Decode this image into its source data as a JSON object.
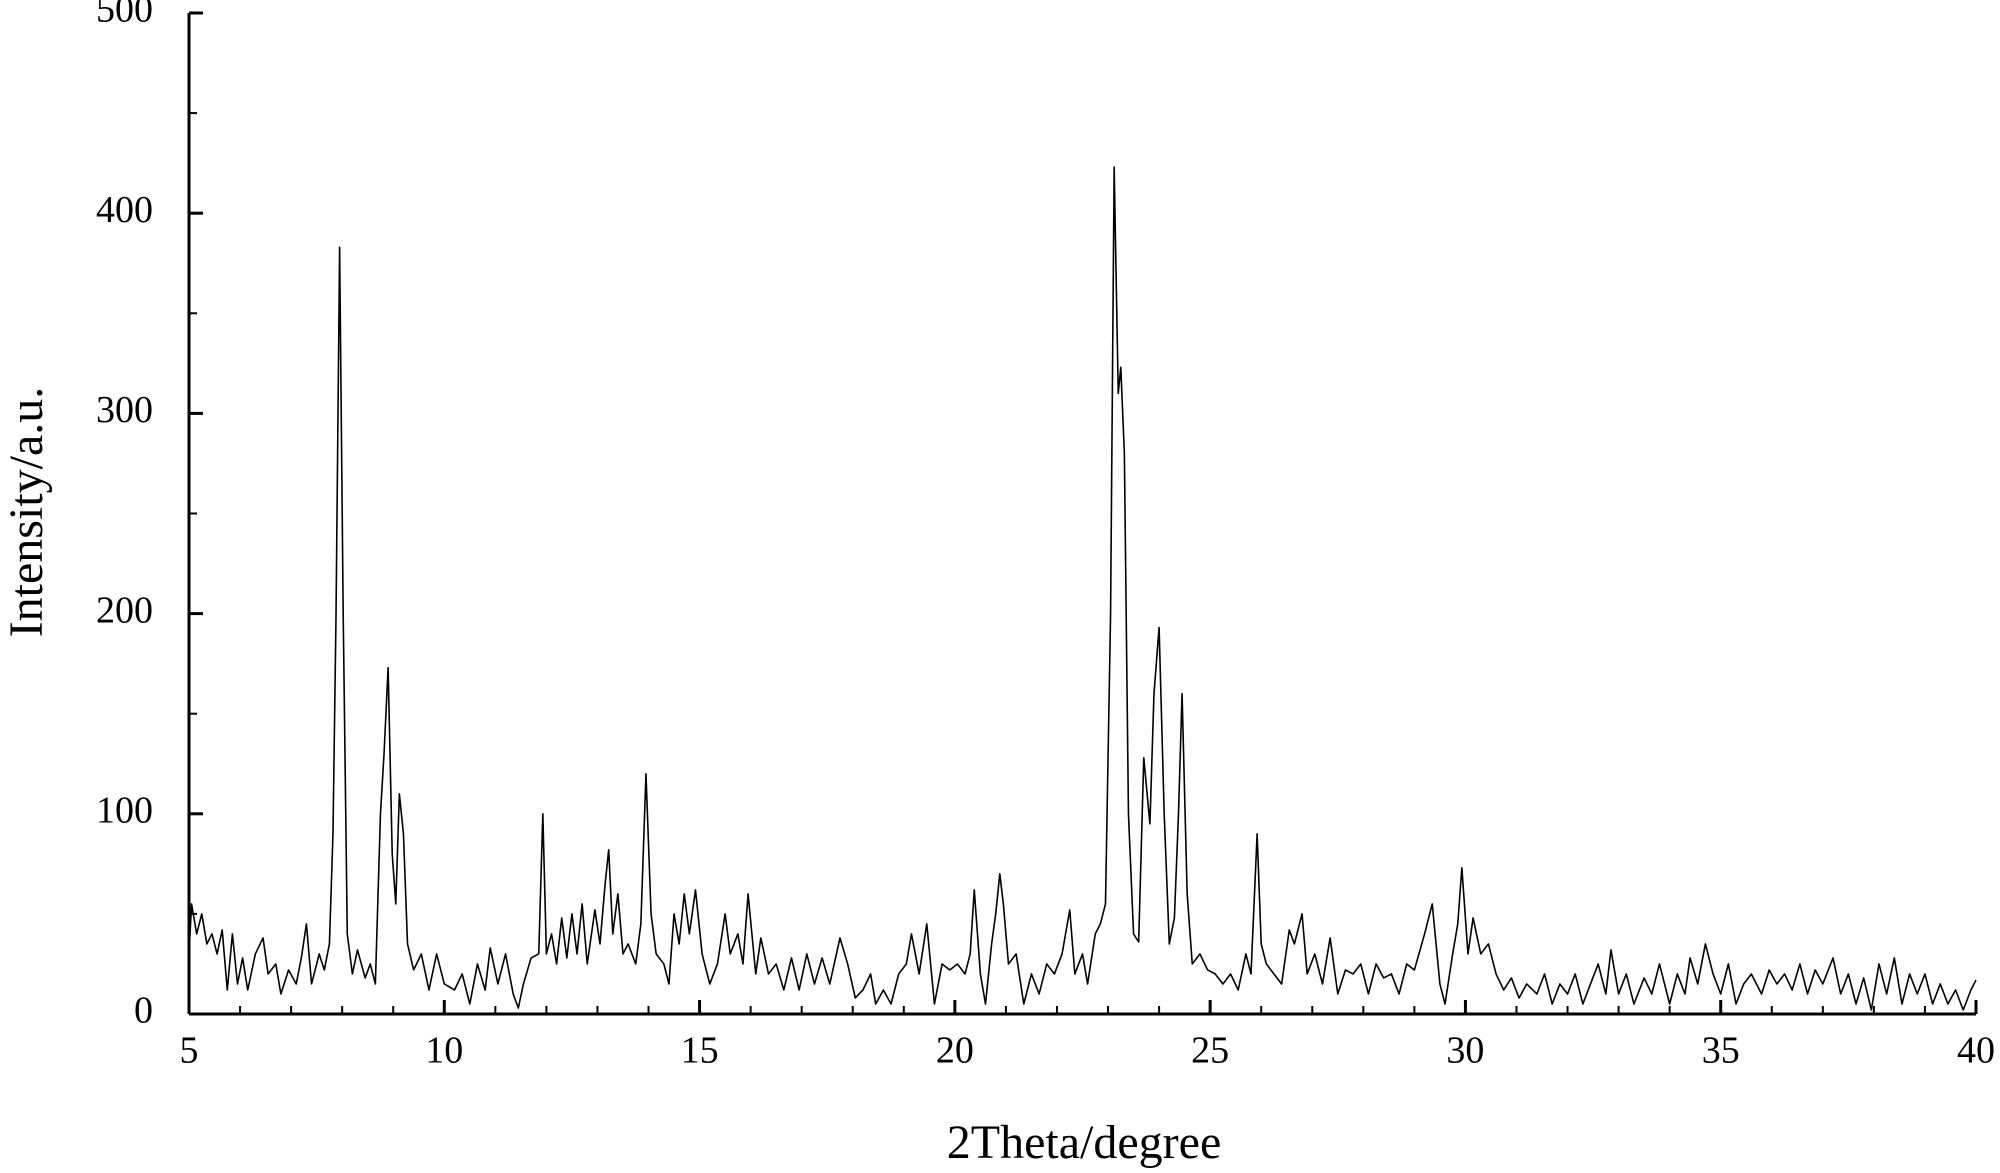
{
  "chart_data": {
    "type": "line",
    "x_label": "2Theta/degree",
    "y_label": "Intensity/a.u.",
    "color": "#000000",
    "xlim": [
      5,
      40
    ],
    "xticks": [
      5,
      10,
      15,
      20,
      25,
      30,
      35,
      40
    ],
    "ylim": [
      0,
      500
    ],
    "yticks": [
      0,
      100,
      200,
      300,
      400,
      500
    ],
    "x": [
      5.0,
      5.05,
      5.15,
      5.25,
      5.35,
      5.45,
      5.55,
      5.65,
      5.75,
      5.85,
      5.95,
      6.05,
      6.15,
      6.3,
      6.45,
      6.55,
      6.7,
      6.8,
      6.95,
      7.1,
      7.2,
      7.3,
      7.4,
      7.55,
      7.65,
      7.75,
      7.82,
      7.88,
      7.95,
      8.02,
      8.1,
      8.2,
      8.3,
      8.45,
      8.55,
      8.65,
      8.75,
      8.82,
      8.9,
      8.98,
      9.05,
      9.12,
      9.2,
      9.28,
      9.4,
      9.55,
      9.7,
      9.85,
      10.0,
      10.2,
      10.35,
      10.5,
      10.65,
      10.8,
      10.9,
      11.05,
      11.2,
      11.35,
      11.45,
      11.55,
      11.7,
      11.85,
      11.93,
      12.0,
      12.1,
      12.2,
      12.3,
      12.4,
      12.5,
      12.6,
      12.7,
      12.8,
      12.95,
      13.05,
      13.15,
      13.22,
      13.3,
      13.4,
      13.5,
      13.6,
      13.75,
      13.85,
      13.95,
      14.05,
      14.15,
      14.3,
      14.4,
      14.5,
      14.6,
      14.7,
      14.8,
      14.92,
      15.05,
      15.2,
      15.35,
      15.5,
      15.6,
      15.75,
      15.85,
      15.95,
      16.1,
      16.2,
      16.35,
      16.5,
      16.65,
      16.8,
      16.95,
      17.1,
      17.25,
      17.4,
      17.55,
      17.75,
      17.9,
      18.05,
      18.2,
      18.35,
      18.45,
      18.6,
      18.75,
      18.9,
      19.05,
      19.15,
      19.3,
      19.45,
      19.6,
      19.75,
      19.9,
      20.05,
      20.2,
      20.3,
      20.38,
      20.5,
      20.6,
      20.72,
      20.8,
      20.88,
      20.95,
      21.05,
      21.2,
      21.35,
      21.5,
      21.65,
      21.8,
      21.95,
      22.1,
      22.25,
      22.35,
      22.5,
      22.6,
      22.75,
      22.85,
      22.95,
      23.05,
      23.12,
      23.2,
      23.25,
      23.32,
      23.4,
      23.5,
      23.6,
      23.7,
      23.82,
      23.9,
      24.0,
      24.1,
      24.2,
      24.3,
      24.38,
      24.45,
      24.55,
      24.65,
      24.8,
      24.95,
      25.1,
      25.25,
      25.4,
      25.55,
      25.7,
      25.8,
      25.92,
      26.0,
      26.1,
      26.25,
      26.4,
      26.55,
      26.65,
      26.8,
      26.9,
      27.05,
      27.2,
      27.35,
      27.5,
      27.65,
      27.8,
      27.95,
      28.1,
      28.25,
      28.4,
      28.55,
      28.7,
      28.85,
      29.0,
      29.2,
      29.35,
      29.5,
      29.6,
      29.75,
      29.85,
      29.93,
      30.05,
      30.15,
      30.3,
      30.45,
      30.6,
      30.75,
      30.9,
      31.05,
      31.2,
      31.4,
      31.55,
      31.7,
      31.85,
      32.0,
      32.15,
      32.3,
      32.45,
      32.6,
      32.75,
      32.85,
      33.0,
      33.15,
      33.3,
      33.5,
      33.65,
      33.8,
      34.0,
      34.15,
      34.3,
      34.4,
      34.55,
      34.7,
      34.85,
      35.0,
      35.15,
      35.3,
      35.45,
      35.6,
      35.8,
      35.95,
      36.1,
      36.25,
      36.4,
      36.55,
      36.7,
      36.85,
      37.0,
      37.2,
      37.35,
      37.5,
      37.65,
      37.8,
      37.95,
      38.1,
      38.25,
      38.4,
      38.55,
      38.7,
      38.85,
      39.0,
      39.15,
      39.3,
      39.45,
      39.6,
      39.75,
      39.9,
      40.0
    ],
    "values": [
      30,
      55,
      40,
      50,
      35,
      40,
      30,
      42,
      12,
      40,
      15,
      28,
      12,
      30,
      38,
      20,
      25,
      10,
      22,
      15,
      28,
      45,
      15,
      30,
      22,
      35,
      90,
      200,
      383,
      200,
      40,
      20,
      32,
      18,
      25,
      15,
      100,
      130,
      173,
      80,
      55,
      110,
      90,
      35,
      22,
      30,
      12,
      30,
      15,
      12,
      20,
      5,
      25,
      12,
      33,
      15,
      30,
      10,
      3,
      15,
      28,
      30,
      100,
      30,
      40,
      25,
      48,
      28,
      50,
      30,
      55,
      25,
      52,
      35,
      65,
      82,
      40,
      60,
      30,
      35,
      25,
      45,
      120,
      50,
      30,
      25,
      15,
      50,
      35,
      60,
      40,
      62,
      30,
      15,
      25,
      50,
      30,
      40,
      25,
      60,
      20,
      38,
      20,
      25,
      12,
      28,
      12,
      30,
      15,
      28,
      15,
      38,
      25,
      8,
      12,
      20,
      5,
      12,
      5,
      20,
      25,
      40,
      20,
      45,
      5,
      25,
      22,
      25,
      20,
      30,
      62,
      20,
      5,
      35,
      50,
      70,
      55,
      25,
      30,
      5,
      20,
      10,
      25,
      20,
      30,
      52,
      20,
      30,
      15,
      40,
      45,
      55,
      200,
      423,
      310,
      323,
      280,
      100,
      40,
      36,
      128,
      95,
      160,
      193,
      100,
      35,
      48,
      100,
      160,
      60,
      25,
      30,
      22,
      20,
      15,
      20,
      12,
      30,
      20,
      90,
      35,
      25,
      20,
      15,
      42,
      35,
      50,
      20,
      30,
      15,
      38,
      10,
      22,
      20,
      25,
      10,
      25,
      18,
      20,
      10,
      25,
      22,
      40,
      55,
      15,
      5,
      30,
      45,
      73,
      30,
      48,
      30,
      35,
      20,
      12,
      18,
      8,
      15,
      10,
      20,
      5,
      15,
      10,
      20,
      5,
      15,
      25,
      10,
      32,
      10,
      20,
      5,
      18,
      10,
      25,
      5,
      20,
      10,
      28,
      15,
      35,
      20,
      10,
      25,
      5,
      15,
      20,
      10,
      22,
      15,
      20,
      12,
      25,
      10,
      22,
      15,
      28,
      10,
      20,
      5,
      18,
      2,
      25,
      10,
      28,
      5,
      20,
      10,
      20,
      5,
      15,
      5,
      12,
      2,
      12,
      17
    ]
  }
}
